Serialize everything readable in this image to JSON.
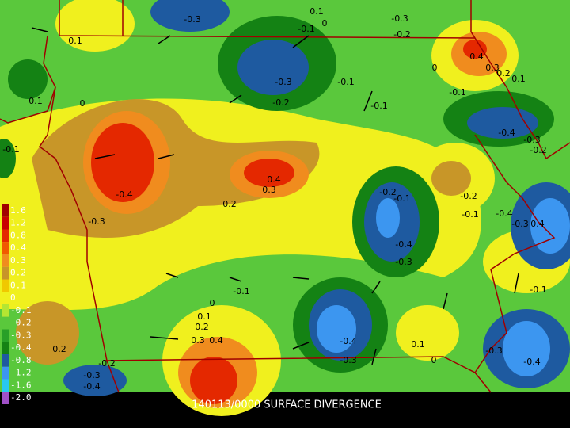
{
  "title": "140113/0000 SURFACE DIVERGENCE",
  "legend": {
    "labels": [
      "1.6",
      "1.2",
      "0.8",
      "0.4",
      "0.3",
      "0.2",
      "0.1",
      "0",
      "-0.1",
      "-0.2",
      "-0.3",
      "-0.4",
      "-0.8",
      "-1.2",
      "-1.6",
      "-2.0"
    ],
    "colors": [
      "#a00000",
      "#c80000",
      "#e42800",
      "#f05a00",
      "#f08c1e",
      "#c89628",
      "#f0c800",
      "#f0f01e",
      "#b4e632",
      "#5ac83c",
      "#28a028",
      "#148214",
      "#1e5aa0",
      "#3c96f0",
      "#28c8f0",
      "#a050c8"
    ]
  },
  "contour_labels": [
    "-0.3",
    "0.1",
    "0.1",
    "-0.1",
    "0",
    "-0.3",
    "-0.2",
    "-0.3",
    "-0.1",
    "-0.2",
    "0",
    "0.1",
    "-0.1",
    "-0.1",
    "0.4",
    "0.3",
    "0.2",
    "0.1",
    "0",
    "-0.4",
    "-0.3",
    "-0.2",
    "-0.1",
    "-0.4",
    "-0.3",
    "0.4",
    "0.3",
    "0.2",
    "-0.2",
    "-0.1",
    "-0.2",
    "-0.1",
    "-0.4",
    "-0.3",
    "0.4",
    "-0.4",
    "-0.3",
    "-0.1",
    "-0.1",
    "0",
    "0.1",
    "0.2",
    "0.3",
    "0.4",
    "-0.4",
    "-0.3",
    "0.1",
    "0",
    "-0.3",
    "-0.4",
    "0.2",
    "-0.2",
    "-0.3",
    "-0.4"
  ]
}
